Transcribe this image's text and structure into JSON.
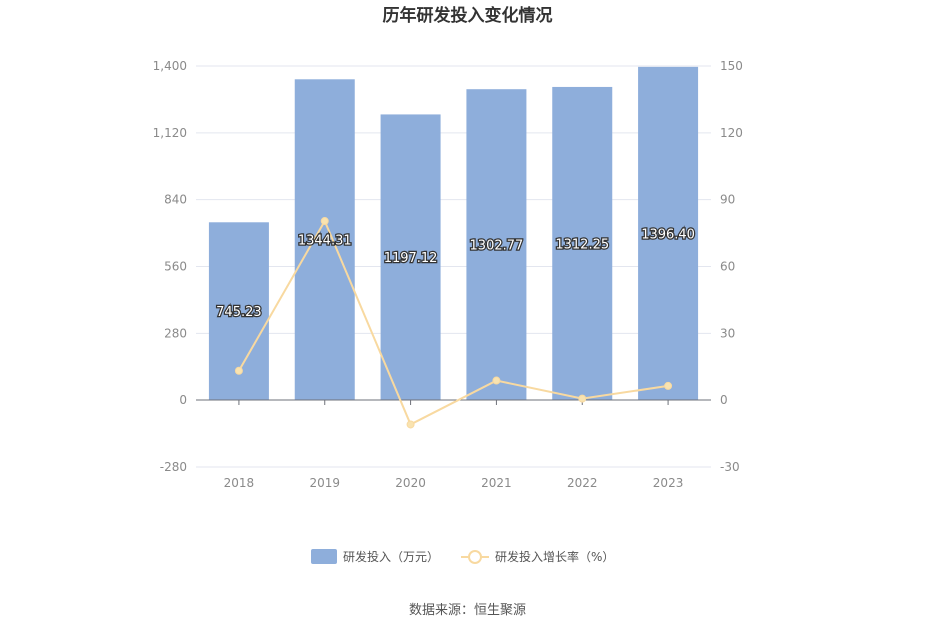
{
  "chart_data": {
    "type": "bar",
    "title": "历年研发投入变化情况",
    "categories": [
      "2018",
      "2019",
      "2020",
      "2021",
      "2022",
      "2023"
    ],
    "series": [
      {
        "name": "研发投入（万元）",
        "type": "bar",
        "axis": "left",
        "color": "#8eaedb",
        "values": [
          745.23,
          1344.31,
          1197.12,
          1302.77,
          1312.25,
          1396.4
        ],
        "labels": [
          "745.23",
          "1344.31",
          "1197.12",
          "1302.77",
          "1312.25",
          "1396.40"
        ]
      },
      {
        "name": "研发投入增长率（%）",
        "type": "line",
        "axis": "right",
        "color": "#f8d9a0",
        "values": [
          13.2,
          80.4,
          -10.9,
          8.8,
          0.7,
          6.4
        ]
      }
    ],
    "y_left": {
      "min": -280,
      "max": 1400,
      "ticks": [
        "-280",
        "0",
        "280",
        "560",
        "840",
        "1,120",
        "1,400"
      ]
    },
    "y_right": {
      "min": -30,
      "max": 150,
      "ticks": [
        "-30",
        "0",
        "30",
        "60",
        "90",
        "120",
        "150"
      ]
    },
    "grid": true,
    "legend_position": "bottom"
  },
  "source": "数据来源：恒生聚源"
}
